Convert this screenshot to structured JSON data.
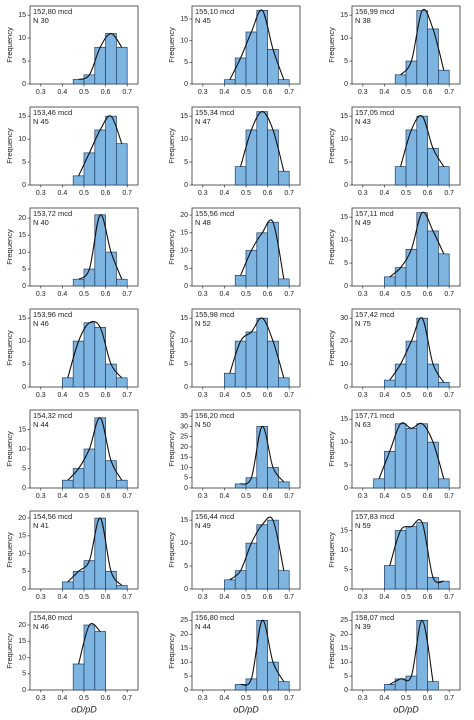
{
  "chart_data": [
    {
      "type": "histogram",
      "label": "152,80 mcd",
      "n_label": "N 30",
      "ylabel": "Frequency",
      "bins": [
        0.45,
        0.5,
        0.55,
        0.6,
        0.65,
        0.7
      ],
      "counts": [
        1,
        2,
        8,
        11,
        8
      ],
      "xlim": [
        0.25,
        0.75
      ],
      "xticks": [
        0.3,
        0.4,
        0.5,
        0.6,
        0.7
      ],
      "ylim": [
        0,
        17
      ],
      "yticks": [
        0,
        5,
        10,
        15
      ],
      "color": "#7db4e0"
    },
    {
      "type": "histogram",
      "label": "155,10 mcd",
      "n_label": "N 45",
      "ylabel": "Frequency",
      "bins": [
        0.4,
        0.45,
        0.5,
        0.55,
        0.6,
        0.65,
        0.7
      ],
      "counts": [
        1,
        6,
        12,
        17,
        8,
        1
      ],
      "xlim": [
        0.25,
        0.75
      ],
      "xticks": [
        0.3,
        0.4,
        0.5,
        0.6,
        0.7
      ],
      "ylim": [
        0,
        18
      ],
      "yticks": [
        0,
        5,
        10,
        15
      ],
      "color": "#7db4e0"
    },
    {
      "type": "histogram",
      "label": "156,99 mcd",
      "n_label": "N 38",
      "ylabel": "Frequency",
      "bins": [
        0.45,
        0.5,
        0.55,
        0.6,
        0.65,
        0.7
      ],
      "counts": [
        2,
        5,
        16,
        12,
        3
      ],
      "xlim": [
        0.25,
        0.75
      ],
      "xticks": [
        0.3,
        0.4,
        0.5,
        0.6,
        0.7
      ],
      "ylim": [
        0,
        17
      ],
      "yticks": [
        0,
        5,
        10,
        15
      ],
      "color": "#7db4e0"
    },
    {
      "type": "histogram",
      "label": "153,46 mcd",
      "n_label": "N 45",
      "ylabel": "Frequency",
      "bins": [
        0.45,
        0.5,
        0.55,
        0.6,
        0.65,
        0.7
      ],
      "counts": [
        2,
        7,
        12,
        15,
        9
      ],
      "xlim": [
        0.25,
        0.75
      ],
      "xticks": [
        0.3,
        0.4,
        0.5,
        0.6,
        0.7
      ],
      "ylim": [
        0,
        17
      ],
      "yticks": [
        0,
        5,
        10,
        15
      ],
      "color": "#7db4e0"
    },
    {
      "type": "histogram",
      "label": "155,34 mcd",
      "n_label": "N 47",
      "ylabel": "Frequency",
      "bins": [
        0.45,
        0.5,
        0.55,
        0.6,
        0.65,
        0.7
      ],
      "counts": [
        4,
        12,
        16,
        12,
        3
      ],
      "xlim": [
        0.25,
        0.75
      ],
      "xticks": [
        0.3,
        0.4,
        0.5,
        0.6,
        0.7
      ],
      "ylim": [
        0,
        17
      ],
      "yticks": [
        0,
        5,
        10,
        15
      ],
      "color": "#7db4e0"
    },
    {
      "type": "histogram",
      "label": "157,05 mcd",
      "n_label": "N 43",
      "ylabel": "Frequency",
      "bins": [
        0.45,
        0.5,
        0.55,
        0.6,
        0.65,
        0.7
      ],
      "counts": [
        4,
        12,
        15,
        8,
        4
      ],
      "xlim": [
        0.25,
        0.75
      ],
      "xticks": [
        0.3,
        0.4,
        0.5,
        0.6,
        0.7
      ],
      "ylim": [
        0,
        17
      ],
      "yticks": [
        0,
        5,
        10,
        15
      ],
      "color": "#7db4e0"
    },
    {
      "type": "histogram",
      "label": "153,72 mcd",
      "n_label": "N 40",
      "ylabel": "Frequency",
      "bins": [
        0.45,
        0.5,
        0.55,
        0.6,
        0.65,
        0.7
      ],
      "counts": [
        2,
        5,
        21,
        10,
        2
      ],
      "xlim": [
        0.25,
        0.75
      ],
      "xticks": [
        0.3,
        0.4,
        0.5,
        0.6,
        0.7
      ],
      "ylim": [
        0,
        23
      ],
      "yticks": [
        0,
        5,
        10,
        15,
        20
      ],
      "color": "#7db4e0"
    },
    {
      "type": "histogram",
      "label": "155,56 mcd",
      "n_label": "N 48",
      "ylabel": "Frequency",
      "bins": [
        0.45,
        0.5,
        0.55,
        0.6,
        0.65,
        0.7
      ],
      "counts": [
        3,
        10,
        15,
        18,
        2
      ],
      "xlim": [
        0.25,
        0.75
      ],
      "xticks": [
        0.3,
        0.4,
        0.5,
        0.6,
        0.7
      ],
      "ylim": [
        0,
        22
      ],
      "yticks": [
        0,
        5,
        10,
        15,
        20
      ],
      "color": "#7db4e0"
    },
    {
      "type": "histogram",
      "label": "157,11 mcd",
      "n_label": "N 49",
      "ylabel": "Frequency",
      "bins": [
        0.4,
        0.45,
        0.5,
        0.55,
        0.6,
        0.65,
        0.7
      ],
      "counts": [
        2,
        4,
        8,
        16,
        12,
        7
      ],
      "xlim": [
        0.25,
        0.75
      ],
      "xticks": [
        0.3,
        0.4,
        0.5,
        0.6,
        0.7
      ],
      "ylim": [
        0,
        17
      ],
      "yticks": [
        0,
        5,
        10,
        15
      ],
      "color": "#7db4e0"
    },
    {
      "type": "histogram",
      "label": "153,96 mcd",
      "n_label": "N 46",
      "ylabel": "Frequency",
      "bins": [
        0.4,
        0.45,
        0.5,
        0.55,
        0.6,
        0.65,
        0.7
      ],
      "counts": [
        2,
        10,
        14,
        13,
        5,
        2
      ],
      "xlim": [
        0.25,
        0.75
      ],
      "xticks": [
        0.3,
        0.4,
        0.5,
        0.6,
        0.7
      ],
      "ylim": [
        0,
        17
      ],
      "yticks": [
        0,
        5,
        10,
        15
      ],
      "color": "#7db4e0"
    },
    {
      "type": "histogram",
      "label": "155,98 mcd",
      "n_label": "N 52",
      "ylabel": "Frequency",
      "bins": [
        0.4,
        0.45,
        0.5,
        0.55,
        0.6,
        0.65,
        0.7
      ],
      "counts": [
        3,
        10,
        12,
        15,
        10,
        2
      ],
      "xlim": [
        0.25,
        0.75
      ],
      "xticks": [
        0.3,
        0.4,
        0.5,
        0.6,
        0.7
      ],
      "ylim": [
        0,
        17
      ],
      "yticks": [
        0,
        5,
        10,
        15
      ],
      "color": "#7db4e0"
    },
    {
      "type": "histogram",
      "label": "157,42 mcd",
      "n_label": "N 75",
      "ylabel": "Frequency",
      "bins": [
        0.4,
        0.45,
        0.5,
        0.55,
        0.6,
        0.65,
        0.7
      ],
      "counts": [
        3,
        10,
        20,
        30,
        10,
        2
      ],
      "xlim": [
        0.25,
        0.75
      ],
      "xticks": [
        0.3,
        0.4,
        0.5,
        0.6,
        0.7
      ],
      "ylim": [
        0,
        34
      ],
      "yticks": [
        0,
        10,
        20,
        30
      ],
      "color": "#7db4e0"
    },
    {
      "type": "histogram",
      "label": "154,32 mcd",
      "n_label": "N 44",
      "ylabel": "Frequency",
      "bins": [
        0.4,
        0.45,
        0.5,
        0.55,
        0.6,
        0.65,
        0.7
      ],
      "counts": [
        2,
        5,
        10,
        18,
        7,
        2
      ],
      "xlim": [
        0.25,
        0.75
      ],
      "xticks": [
        0.3,
        0.4,
        0.5,
        0.6,
        0.7
      ],
      "ylim": [
        0,
        20
      ],
      "yticks": [
        0,
        5,
        10,
        15
      ],
      "color": "#7db4e0"
    },
    {
      "type": "histogram",
      "label": "156,20 mcd",
      "n_label": "N 50",
      "ylabel": "Frequency",
      "bins": [
        0.45,
        0.5,
        0.55,
        0.6,
        0.65,
        0.7
      ],
      "counts": [
        2,
        5,
        30,
        10,
        3
      ],
      "xlim": [
        0.25,
        0.75
      ],
      "xticks": [
        0.3,
        0.4,
        0.5,
        0.6,
        0.7
      ],
      "ylim": [
        0,
        38
      ],
      "yticks": [
        0,
        5,
        10,
        15,
        20,
        25,
        30,
        35
      ],
      "color": "#7db4e0"
    },
    {
      "type": "histogram",
      "label": "157,71 mcd",
      "n_label": "N 63",
      "ylabel": "Frequency",
      "bins": [
        0.35,
        0.4,
        0.45,
        0.5,
        0.55,
        0.6,
        0.65,
        0.7
      ],
      "counts": [
        2,
        8,
        14,
        13,
        14,
        10,
        2
      ],
      "xlim": [
        0.25,
        0.75
      ],
      "xticks": [
        0.3,
        0.4,
        0.5,
        0.6,
        0.7
      ],
      "ylim": [
        0,
        17
      ],
      "yticks": [
        0,
        5,
        10,
        15
      ],
      "color": "#7db4e0"
    },
    {
      "type": "histogram",
      "label": "154,56 mcd",
      "n_label": "N 41",
      "ylabel": "Frequency",
      "bins": [
        0.4,
        0.45,
        0.5,
        0.55,
        0.6,
        0.65,
        0.7
      ],
      "counts": [
        2,
        5,
        8,
        20,
        5,
        1
      ],
      "xlim": [
        0.25,
        0.75
      ],
      "xticks": [
        0.3,
        0.4,
        0.5,
        0.6,
        0.7
      ],
      "ylim": [
        0,
        22
      ],
      "yticks": [
        0,
        5,
        10,
        15,
        20
      ],
      "color": "#7db4e0"
    },
    {
      "type": "histogram",
      "label": "156,44 mcd",
      "n_label": "N 49",
      "ylabel": "Frequency",
      "bins": [
        0.4,
        0.45,
        0.5,
        0.55,
        0.6,
        0.65,
        0.7
      ],
      "counts": [
        2,
        4,
        10,
        14,
        15,
        4
      ],
      "xlim": [
        0.25,
        0.75
      ],
      "xticks": [
        0.3,
        0.4,
        0.5,
        0.6,
        0.7
      ],
      "ylim": [
        0,
        17
      ],
      "yticks": [
        0,
        5,
        10,
        15
      ],
      "color": "#7db4e0"
    },
    {
      "type": "histogram",
      "label": "157,83 mcd",
      "n_label": "N 59",
      "ylabel": "Frequency",
      "bins": [
        0.4,
        0.45,
        0.5,
        0.55,
        0.6,
        0.65,
        0.7
      ],
      "counts": [
        6,
        15,
        16,
        17,
        3,
        2
      ],
      "xlim": [
        0.25,
        0.75
      ],
      "xticks": [
        0.3,
        0.4,
        0.5,
        0.6,
        0.7
      ],
      "ylim": [
        0,
        20
      ],
      "yticks": [
        0,
        5,
        10,
        15
      ],
      "color": "#7db4e0"
    },
    {
      "type": "histogram",
      "label": "154,80 mcd",
      "n_label": "N 46",
      "ylabel": "Frequency",
      "xlabel": "oD/pD",
      "bins": [
        0.45,
        0.5,
        0.55,
        0.6
      ],
      "counts": [
        8,
        20,
        18
      ],
      "xlim": [
        0.25,
        0.75
      ],
      "xticks": [
        0.3,
        0.4,
        0.5,
        0.6,
        0.7
      ],
      "ylim": [
        0,
        24
      ],
      "yticks": [
        0,
        5,
        10,
        15,
        20
      ],
      "color": "#7db4e0"
    },
    {
      "type": "histogram",
      "label": "156,80 mcd",
      "n_label": "N 44",
      "ylabel": "Frequency",
      "xlabel": "oD/pD",
      "bins": [
        0.45,
        0.5,
        0.55,
        0.6,
        0.65,
        0.7
      ],
      "counts": [
        2,
        4,
        25,
        10,
        3
      ],
      "xlim": [
        0.25,
        0.75
      ],
      "xticks": [
        0.3,
        0.4,
        0.5,
        0.6,
        0.7
      ],
      "ylim": [
        0,
        28
      ],
      "yticks": [
        0,
        5,
        10,
        15,
        20,
        25
      ],
      "color": "#7db4e0"
    },
    {
      "type": "histogram",
      "label": "158,07 mcd",
      "n_label": "N 39",
      "ylabel": "Frequency",
      "xlabel": "oD/pD",
      "bins": [
        0.4,
        0.45,
        0.5,
        0.55,
        0.6,
        0.65
      ],
      "counts": [
        2,
        4,
        5,
        25,
        3
      ],
      "xlim": [
        0.25,
        0.75
      ],
      "xticks": [
        0.3,
        0.4,
        0.5,
        0.6,
        0.7
      ],
      "ylim": [
        0,
        28
      ],
      "yticks": [
        0,
        5,
        10,
        15,
        20,
        25
      ],
      "color": "#7db4e0"
    }
  ]
}
